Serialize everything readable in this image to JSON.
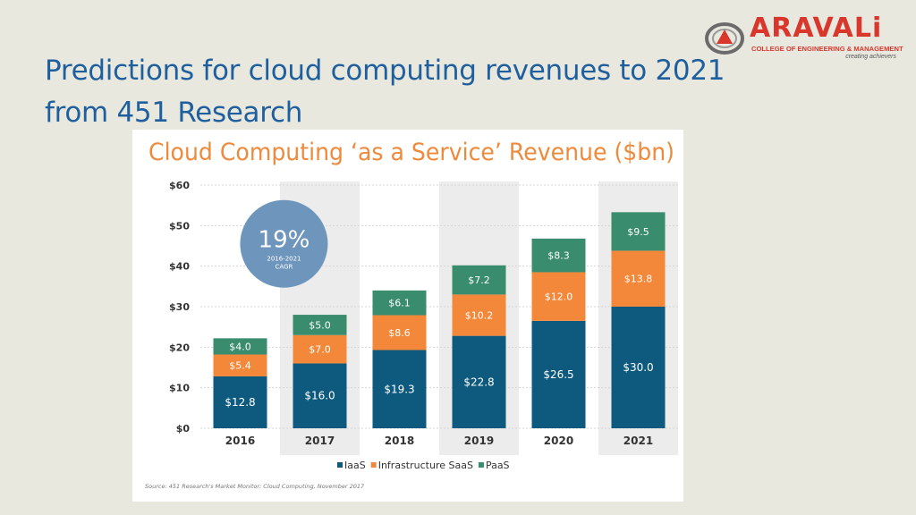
{
  "slide": {
    "title_line1": "Predictions for cloud computing revenues to 2021",
    "title_line2": "from 451 Research"
  },
  "logo": {
    "name": "ARAVALi",
    "subtitle": "COLLEGE OF ENGINEERING & MANAGEMENT",
    "tagline": "creating achievers",
    "color": "#d9362c"
  },
  "chart_data": {
    "type": "bar",
    "stacked": true,
    "title": "Cloud Computing ‘as a Service’ Revenue ($bn)",
    "categories": [
      "2016",
      "2017",
      "2018",
      "2019",
      "2020",
      "2021"
    ],
    "series": [
      {
        "name": "IaaS",
        "color": "#0e5a7e",
        "values": [
          12.8,
          16.0,
          19.3,
          22.8,
          26.5,
          30.0
        ],
        "labels": [
          "$12.8",
          "$16.0",
          "$19.3",
          "$22.8",
          "$26.5",
          "$30.0"
        ]
      },
      {
        "name": "Infrastructure SaaS",
        "color": "#f4883a",
        "values": [
          5.4,
          7.0,
          8.6,
          10.2,
          12.0,
          13.8
        ],
        "labels": [
          "$5.4",
          "$7.0",
          "$8.6",
          "$10.2",
          "$12.0",
          "$13.8"
        ]
      },
      {
        "name": "PaaS",
        "color": "#3a8c6e",
        "values": [
          4.0,
          5.0,
          6.1,
          7.2,
          8.3,
          9.5
        ],
        "labels": [
          "$4.0",
          "$5.0",
          "$6.1",
          "$7.2",
          "$8.3",
          "$9.5"
        ]
      }
    ],
    "ylim": [
      0,
      60
    ],
    "yticks": [
      "$0",
      "$10",
      "$20",
      "$30",
      "$40",
      "$50",
      "$60"
    ],
    "grid": true,
    "legend_position": "bottom",
    "callout": {
      "value": "19%",
      "line1": "2016-2021",
      "line2": "CAGR",
      "color": "#6e96bd"
    },
    "source": "Source: 451 Research's Market Monitor: Cloud Computing, November 2017",
    "title_color": "#ee8a3c"
  }
}
